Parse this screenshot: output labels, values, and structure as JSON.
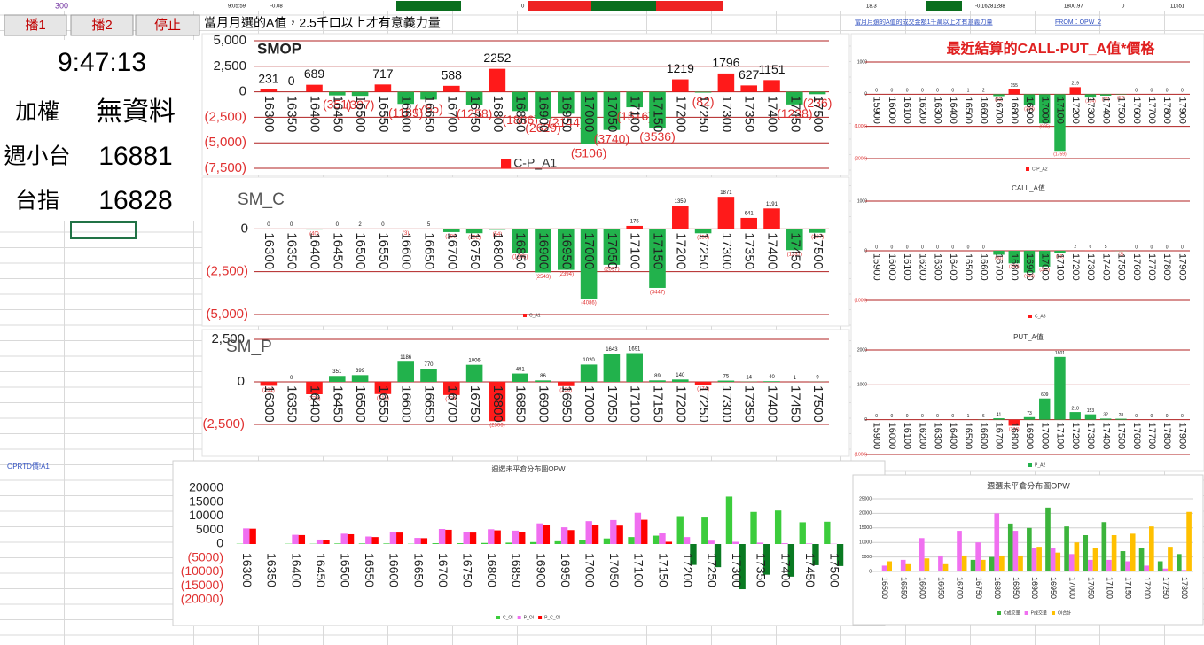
{
  "top_strip": [
    "300",
    "9:05:59",
    "-0.08",
    "0",
    "18.3",
    "-0.16281288",
    "1800.97",
    "0",
    "11551"
  ],
  "buttons": [
    "播1",
    "播2",
    "停止"
  ],
  "panel": {
    "time": "9:47:13",
    "rows": [
      [
        "加權",
        "無資料"
      ],
      [
        "週小台",
        "16881"
      ],
      [
        "台指",
        "16828"
      ]
    ]
  },
  "header": "當月月選的A值，2.5千口以上才有意義力量",
  "right_note": "當月月選的A值的成交金額1千萬以上才有意義力量",
  "right_from": "FROM：OPW_2",
  "link": "OPRTD價!A1",
  "chart_data": [
    {
      "type": "bar",
      "title": "SMOP",
      "categories": [
        "16300",
        "16350",
        "16400",
        "16450",
        "16500",
        "16550",
        "16600",
        "16650",
        "16700",
        "16750",
        "16800",
        "16850",
        "16900",
        "16950",
        "17000",
        "17050",
        "17100",
        "17150",
        "17200",
        "17250",
        "17300",
        "17350",
        "17400",
        "17450",
        "17500"
      ],
      "series": [
        {
          "name": "C-P_A1",
          "color": "#ff1a1a",
          "negative_color": "#22b24c",
          "values": [
            231,
            0,
            689,
            -351,
            -397,
            717,
            -1189,
            -765,
            588,
            -1258,
            2252,
            -1886,
            -2629,
            -2144,
            -5106,
            -3740,
            -1516,
            -3536,
            1219,
            -82,
            1796,
            627,
            1151,
            -1238,
            -236
          ],
          "value_labels": [
            "231",
            "0",
            "689",
            "(351)",
            "(397)",
            "717",
            "(1189)",
            "(765)",
            "588",
            "(1258)",
            "2252",
            "(1886)",
            "(2629)",
            "(2144)",
            "(5106)",
            "(3740)",
            "(1516)",
            "(3536)",
            "1219",
            "(82)",
            "1796",
            "627",
            "1151",
            "(1238)",
            "(236)"
          ]
        }
      ],
      "ylim": [
        -7500,
        5000
      ],
      "yticks": [
        {
          "value": 5000,
          "label": "5,000"
        },
        {
          "value": 2500,
          "label": "2,500"
        },
        0,
        {
          "value": -2500,
          "label": "(2,500)"
        },
        {
          "value": -5000,
          "label": "(5,000)"
        },
        {
          "value": -7500,
          "label": "(7,500)"
        }
      ],
      "grid": true,
      "grid_color": "#b02020",
      "negative_text_color": "#e03030",
      "legend": "bottom"
    },
    {
      "type": "bar",
      "title": "SM_C",
      "categories": [
        "16300",
        "16350",
        "16400",
        "16450",
        "16500",
        "16550",
        "16600",
        "16650",
        "16700",
        "16750",
        "16800",
        "16850",
        "16900",
        "16950",
        "17000",
        "17050",
        "17100",
        "17150",
        "17200",
        "17250",
        "17300",
        "17350",
        "17400",
        "17450",
        "17500"
      ],
      "series": [
        {
          "name": "C_A1",
          "color": "#ff1a1a",
          "negative_color": "#22b24c",
          "values": [
            0,
            0,
            -40,
            0,
            2,
            0,
            -3,
            5,
            -186,
            -252,
            -54,
            -1395,
            -2543,
            -2394,
            -4086,
            -2097,
            175,
            -3447,
            1359,
            -256,
            1871,
            641,
            1191,
            -1237,
            -227
          ],
          "value_labels": [
            "0",
            "0",
            "(40)",
            "0",
            "2",
            "0",
            "(3)",
            "5",
            "(186)",
            "(252)",
            "(54)",
            "(1395)",
            "(2543)",
            "(2394)",
            "(4086)",
            "(2097)",
            "175",
            "(3447)",
            "1359",
            "(256)",
            "1871",
            "641",
            "1191",
            "(1237)",
            "(227)"
          ]
        }
      ],
      "ylim": [
        -5000,
        2500
      ],
      "yticks": [
        0,
        {
          "value": -2500,
          "label": "(2,500)"
        },
        {
          "value": -5000,
          "label": "(5,000)"
        }
      ],
      "grid": true,
      "grid_color": "#b02020",
      "negative_text_color": "#e03030",
      "legend": "bottom"
    },
    {
      "type": "bar",
      "title": "SM_P",
      "categories": [
        "16300",
        "16350",
        "16400",
        "16450",
        "16500",
        "16550",
        "16600",
        "16650",
        "16700",
        "16750",
        "16800",
        "16850",
        "16900",
        "16950",
        "17000",
        "17050",
        "17100",
        "17150",
        "17200",
        "17250",
        "17300",
        "17350",
        "17400",
        "17450",
        "17500"
      ],
      "series": [
        {
          "name": "P_A1",
          "color": "#22b24c",
          "negative_color": "#ff1a1a",
          "values": [
            -231,
            0,
            -729,
            351,
            399,
            -717,
            1186,
            770,
            -774,
            1006,
            -2306,
            491,
            86,
            -250,
            1020,
            1643,
            1691,
            89,
            140,
            -174,
            75,
            14,
            40,
            1,
            9
          ],
          "value_labels": [
            "(231)",
            "0",
            "(729)",
            "351",
            "399",
            "(717)",
            "1186",
            "770",
            "(774)",
            "1006",
            "(2306)",
            "491",
            "86",
            "(250)",
            "1020",
            "1643",
            "1691",
            "89",
            "140",
            "(174)",
            "75",
            "14",
            "40",
            "1",
            "9"
          ]
        }
      ],
      "ylim": [
        -2500,
        2500
      ],
      "yticks": [
        {
          "value": 2500,
          "label": "2,500"
        },
        0,
        {
          "value": -2500,
          "label": "(2,500)"
        }
      ],
      "grid": true,
      "grid_color": "#b02020",
      "negative_text_color": "#e03030",
      "legend": false
    },
    {
      "type": "bar",
      "title": "最近結算的CALL-PUT_A值*價格",
      "categories": [
        "15900",
        "16000",
        "16100",
        "16200",
        "16300",
        "16400",
        "16500",
        "16600",
        "16700",
        "16800",
        "16900",
        "17000",
        "17100",
        "17200",
        "17300",
        "17400",
        "17500",
        "17600",
        "17700",
        "17800",
        "17900"
      ],
      "series": [
        {
          "name": "C-P_A2",
          "color": "#ff1a1a",
          "negative_color": "#22b24c",
          "values": [
            0,
            0,
            0,
            0,
            0,
            0,
            1,
            2,
            -60,
            155,
            -349,
            -905,
            -1759,
            219,
            -104,
            -44,
            -12,
            0,
            0,
            0,
            0
          ],
          "value_labels": [
            "0",
            "0",
            "0",
            "0",
            "0",
            "0",
            "1",
            "2",
            "(60)",
            "155",
            "(349)",
            "(905)",
            "(1759)",
            "219",
            "(104)",
            "(44)",
            "(12)",
            "0",
            "0",
            "0",
            "0"
          ]
        }
      ],
      "ylim": [
        -2000,
        1000
      ],
      "yticks": [
        1000,
        0,
        {
          "value": -1000,
          "label": "(1000)"
        },
        {
          "value": -2000,
          "label": "(2000)"
        }
      ],
      "grid": true,
      "grid_color": "#b02020",
      "negative_text_color": "#e03030",
      "legend": "bottom"
    },
    {
      "type": "bar",
      "title": "CALL_A值",
      "categories": [
        "15900",
        "16000",
        "16100",
        "16200",
        "16300",
        "16400",
        "16500",
        "16600",
        "16700",
        "16800",
        "16900",
        "17000",
        "17100",
        "17200",
        "17300",
        "17400",
        "17500",
        "17600",
        "17700",
        "17800",
        "17900"
      ],
      "series": [
        {
          "name": "C_A3",
          "color": "#ff1a1a",
          "negative_color": "#22b24c",
          "values": [
            0,
            0,
            0,
            0,
            0,
            0,
            0,
            0,
            -80,
            -255,
            -439,
            -320,
            -52,
            2,
            6,
            5,
            -3,
            0,
            0,
            0,
            0
          ],
          "value_labels": [
            "0",
            "0",
            "0",
            "0",
            "0",
            "0",
            "0",
            "0",
            "(80)",
            "(255)",
            "(439)",
            "(320)",
            "(52)",
            "2",
            "6",
            "5",
            "(3)",
            "0",
            "0",
            "0",
            "0"
          ]
        }
      ],
      "ylim": [
        -1000,
        1000
      ],
      "yticks": [
        1000,
        0,
        {
          "value": -1000,
          "label": "(1000)"
        }
      ],
      "grid": true,
      "grid_color": "#b02020",
      "negative_text_color": "#e03030",
      "legend": "bottom"
    },
    {
      "type": "bar",
      "title": "PUT_A值",
      "categories": [
        "15900",
        "16000",
        "16100",
        "16200",
        "16300",
        "16400",
        "16500",
        "16600",
        "16700",
        "16800",
        "16900",
        "17000",
        "17100",
        "17200",
        "17300",
        "17400",
        "17500",
        "17600",
        "17700",
        "17800",
        "17900"
      ],
      "series": [
        {
          "name": "P_A2",
          "color": "#22b24c",
          "negative_color": "#ff1a1a",
          "values": [
            0,
            0,
            0,
            0,
            0,
            0,
            1,
            6,
            41,
            -174,
            73,
            609,
            1801,
            218,
            153,
            32,
            28,
            0,
            0,
            0,
            0
          ],
          "value_labels": [
            "0",
            "0",
            "0",
            "0",
            "0",
            "0",
            "1",
            "6",
            "41",
            "(174)",
            "73",
            "609",
            "1801",
            "218",
            "153",
            "32",
            "28",
            "0",
            "0",
            "0",
            "0"
          ]
        }
      ],
      "ylim": [
        -1000,
        2000
      ],
      "yticks": [
        2000,
        1000,
        0,
        {
          "value": -1000,
          "label": "(1000)"
        }
      ],
      "grid": true,
      "grid_color": "#b02020",
      "negative_text_color": "#e03030",
      "legend": "bottom"
    },
    {
      "type": "bar",
      "title": "週選未平倉分布圖OPW",
      "categories": [
        "16300",
        "16350",
        "16400",
        "16450",
        "16500",
        "16550",
        "16600",
        "16650",
        "16700",
        "16750",
        "16800",
        "16850",
        "16900",
        "16950",
        "17000",
        "17050",
        "17100",
        "17150",
        "17200",
        "17250",
        "17300",
        "17350",
        "17400",
        "17450",
        "17500"
      ],
      "series": [
        {
          "name": "C_OI",
          "color": "#3ccc3c",
          "values": [
            100,
            0,
            100,
            100,
            200,
            200,
            200,
            100,
            300,
            300,
            400,
            500,
            700,
            1000,
            1500,
            2000,
            2500,
            3000,
            10000,
            9500,
            17000,
            11500,
            12000,
            7800,
            8000
          ]
        },
        {
          "name": "P_OI",
          "color": "#f06ef0",
          "values": [
            5600,
            0,
            3300,
            1600,
            3700,
            2700,
            4300,
            2200,
            5400,
            4400,
            5300,
            4800,
            7400,
            6000,
            8200,
            8600,
            11200,
            3800,
            2500,
            1200,
            800,
            500,
            300,
            200,
            100
          ]
        },
        {
          "name": "P_C_OI",
          "color": "#ff0000",
          "negative_color": "#0a7a22",
          "values": [
            5500,
            0,
            3200,
            1500,
            3500,
            2500,
            4100,
            2100,
            5100,
            4100,
            4900,
            4300,
            6700,
            5000,
            6700,
            6600,
            8700,
            800,
            -7500,
            -8300,
            -16200,
            -11000,
            -11700,
            -7600,
            -7900
          ]
        }
      ],
      "ylim": [
        -20000,
        20000
      ],
      "yticks": [
        20000,
        15000,
        10000,
        5000,
        0,
        {
          "value": -5000,
          "label": "(5000)"
        },
        {
          "value": -10000,
          "label": "(10000)"
        },
        {
          "value": -15000,
          "label": "(15000)"
        },
        {
          "value": -20000,
          "label": "(20000)"
        }
      ],
      "grid": false,
      "negative_text_color": "#e03030",
      "legend": "bottom"
    },
    {
      "type": "bar",
      "title": "週選未平倉分布圖OPW",
      "categories": [
        "16500",
        "16550",
        "16600",
        "16650",
        "16700",
        "16750",
        "16800",
        "16850",
        "16900",
        "16950",
        "17000",
        "17050",
        "17100",
        "17150",
        "17200",
        "17250",
        "17300"
      ],
      "series": [
        {
          "name": "C成交量",
          "color": "#3cb43c",
          "values": [
            0,
            0,
            0,
            0,
            0,
            4000,
            5000,
            16500,
            15000,
            22000,
            15500,
            12500,
            17000,
            7000,
            8000,
            3500,
            6000
          ]
        },
        {
          "name": "P成交量",
          "color": "#f070f0",
          "values": [
            2000,
            4000,
            11500,
            5500,
            14000,
            10000,
            20000,
            14000,
            8000,
            8000,
            6000,
            4000,
            4000,
            3500,
            2000,
            1000,
            500
          ]
        },
        {
          "name": "OI合計",
          "color": "#ffc000",
          "values": [
            3500,
            2500,
            4500,
            2500,
            5500,
            4000,
            5500,
            5500,
            8500,
            6500,
            10000,
            8000,
            12500,
            13000,
            15500,
            8500,
            20500
          ]
        }
      ],
      "ylim": [
        0,
        25000
      ],
      "yticks": [
        25000,
        20000,
        15000,
        10000,
        5000,
        0
      ],
      "grid": true,
      "grid_color": "#d0d0d0",
      "negative_text_color": "#e03030",
      "legend": "bottom"
    }
  ]
}
